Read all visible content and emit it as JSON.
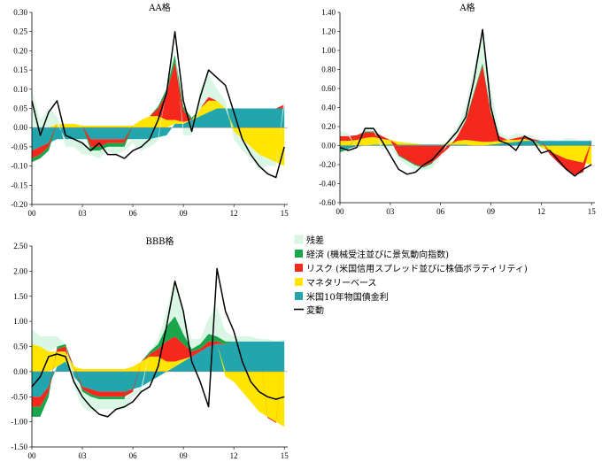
{
  "legend": [
    {
      "key": "residual",
      "label": "残差",
      "color": "#d9f7e4",
      "kind": "area"
    },
    {
      "key": "economy",
      "label": "経済 (機械受注並びに景気動向指数)",
      "color": "#1aa64a",
      "kind": "area"
    },
    {
      "key": "risk",
      "label": "リスク (米国信用スプレッド並びに株価ボラティリティ)",
      "color": "#f5281e",
      "kind": "area"
    },
    {
      "key": "monetary",
      "label": "マネタリーベース",
      "color": "#ffe500",
      "kind": "area"
    },
    {
      "key": "ust10y",
      "label": "米国10年物国債金利",
      "color": "#23a5ad",
      "kind": "area"
    },
    {
      "key": "change",
      "label": "変動",
      "color": "#000000",
      "kind": "line"
    }
  ],
  "chart_data": [
    {
      "type": "area",
      "title": "AA格",
      "xlabel": "",
      "ylabel": "",
      "xticks": [
        "00",
        "03",
        "06",
        "09",
        "12",
        "15"
      ],
      "xlim": [
        2000,
        2015.2
      ],
      "ylim": [
        -0.2,
        0.3
      ],
      "yticks": [
        "0.30",
        "0.25",
        "0.20",
        "0.15",
        "0.10",
        "0.05",
        "0.00",
        "-0.05",
        "-0.10",
        "-0.15",
        "-0.20"
      ],
      "x": [
        2000.0,
        2000.5,
        2001.0,
        2001.5,
        2002.0,
        2002.5,
        2003.0,
        2003.5,
        2004.0,
        2004.5,
        2005.0,
        2005.5,
        2006.0,
        2006.5,
        2007.0,
        2007.5,
        2008.0,
        2008.5,
        2009.0,
        2009.5,
        2010.0,
        2010.5,
        2011.0,
        2011.5,
        2012.0,
        2012.5,
        2013.0,
        2013.5,
        2014.0,
        2014.5,
        2015.0
      ],
      "series": [
        {
          "key": "ust10y",
          "values": [
            -0.06,
            -0.05,
            -0.04,
            -0.03,
            -0.03,
            -0.03,
            -0.03,
            -0.03,
            -0.03,
            -0.03,
            -0.03,
            -0.03,
            -0.03,
            -0.03,
            -0.03,
            -0.025,
            -0.02,
            0.01,
            0.01,
            0.02,
            0.03,
            0.04,
            0.05,
            0.05,
            0.05,
            0.05,
            0.05,
            0.05,
            0.05,
            0.05,
            0.05
          ]
        },
        {
          "key": "monetary",
          "values": [
            0.0,
            0.0,
            0.0,
            0.01,
            0.01,
            0.01,
            0.005,
            0.005,
            0.005,
            0.005,
            0.005,
            0.005,
            0.005,
            0.02,
            0.03,
            0.03,
            0.02,
            0.01,
            0.005,
            0.0,
            0.02,
            0.03,
            0.02,
            0.0,
            -0.01,
            -0.03,
            -0.05,
            -0.07,
            -0.08,
            -0.09,
            -0.1
          ]
        },
        {
          "key": "risk",
          "values": [
            -0.02,
            -0.02,
            -0.01,
            0.0,
            0.0,
            0.0,
            0.0,
            -0.02,
            -0.02,
            -0.01,
            -0.01,
            -0.01,
            0.0,
            0.0,
            0.0,
            0.02,
            0.07,
            0.15,
            0.03,
            0.0,
            0.0,
            0.01,
            0.0,
            0.0,
            0.0,
            0.0,
            0.0,
            0.0,
            0.0,
            0.0,
            0.01
          ]
        },
        {
          "key": "economy",
          "values": [
            -0.01,
            -0.01,
            -0.01,
            0.0,
            0.0,
            0.0,
            0.0,
            -0.01,
            -0.01,
            -0.01,
            -0.01,
            -0.01,
            0.0,
            0.0,
            0.0,
            0.005,
            0.01,
            0.02,
            0.01,
            0.005,
            0.0,
            0.0,
            0.0,
            0.0,
            0.0,
            0.0,
            0.0,
            0.0,
            0.0,
            0.0,
            0.0
          ]
        },
        {
          "key": "residual",
          "values": [
            0.1,
            0.02,
            0.05,
            0.02,
            -0.02,
            -0.02,
            -0.04,
            -0.01,
            -0.02,
            -0.01,
            -0.02,
            -0.01,
            -0.01,
            -0.03,
            -0.02,
            -0.01,
            0.0,
            0.02,
            -0.02,
            -0.02,
            0.05,
            0.06,
            0.03,
            0.02,
            -0.02,
            -0.03,
            -0.03,
            -0.04,
            -0.02,
            -0.01,
            0.02
          ]
        },
        {
          "key": "change",
          "values": [
            0.07,
            -0.02,
            0.04,
            0.07,
            -0.02,
            -0.03,
            -0.04,
            -0.06,
            -0.04,
            -0.07,
            -0.07,
            -0.08,
            -0.06,
            -0.05,
            -0.03,
            0.02,
            0.09,
            0.25,
            0.07,
            -0.01,
            0.08,
            0.15,
            0.13,
            0.11,
            0.04,
            -0.03,
            -0.07,
            -0.1,
            -0.12,
            -0.13,
            -0.05
          ]
        }
      ]
    },
    {
      "type": "area",
      "title": "A格",
      "xlabel": "",
      "ylabel": "",
      "xticks": [
        "00",
        "03",
        "06",
        "09",
        "12",
        "15"
      ],
      "xlim": [
        2000,
        2015.2
      ],
      "ylim": [
        -0.6,
        1.4
      ],
      "yticks": [
        "1.40",
        "1.20",
        "1.00",
        "0.80",
        "0.60",
        "0.40",
        "0.20",
        "0.00",
        "-0.20",
        "-0.40",
        "-0.60"
      ],
      "x": [
        2000.0,
        2000.5,
        2001.0,
        2001.5,
        2002.0,
        2002.5,
        2003.0,
        2003.5,
        2004.0,
        2004.5,
        2005.0,
        2005.5,
        2006.0,
        2006.5,
        2007.0,
        2007.5,
        2008.0,
        2008.5,
        2009.0,
        2009.5,
        2010.0,
        2010.5,
        2011.0,
        2011.5,
        2012.0,
        2012.5,
        2013.0,
        2013.5,
        2014.0,
        2014.5,
        2015.0
      ],
      "series": [
        {
          "key": "ust10y",
          "values": [
            -0.05,
            -0.03,
            -0.01,
            0.0,
            0.01,
            0.01,
            0.01,
            0.01,
            0.01,
            0.01,
            0.01,
            0.01,
            0.01,
            0.01,
            0.01,
            0.01,
            0.0,
            0.0,
            0.01,
            0.02,
            0.03,
            0.04,
            0.05,
            0.05,
            0.05,
            0.05,
            0.05,
            0.05,
            0.05,
            0.05,
            0.05
          ]
        },
        {
          "key": "monetary",
          "values": [
            0.05,
            0.05,
            0.06,
            0.08,
            0.08,
            0.06,
            0.05,
            0.03,
            0.02,
            0.01,
            0.0,
            0.0,
            0.0,
            0.02,
            0.04,
            0.05,
            0.05,
            0.04,
            0.03,
            0.03,
            0.03,
            0.02,
            0.02,
            0.0,
            -0.02,
            -0.06,
            -0.1,
            -0.14,
            -0.16,
            -0.18,
            -0.2
          ]
        },
        {
          "key": "risk",
          "values": [
            0.05,
            0.05,
            0.05,
            0.06,
            0.05,
            0.03,
            0.0,
            -0.1,
            -0.15,
            -0.2,
            -0.22,
            -0.18,
            -0.1,
            -0.02,
            0.05,
            0.2,
            0.5,
            0.8,
            0.3,
            0.05,
            0.0,
            0.02,
            0.03,
            0.02,
            0.0,
            -0.03,
            -0.08,
            -0.12,
            -0.15,
            -0.1,
            0.0
          ]
        },
        {
          "key": "economy",
          "values": [
            -0.02,
            -0.01,
            0.0,
            0.01,
            0.01,
            0.0,
            0.0,
            -0.01,
            -0.01,
            -0.01,
            -0.01,
            -0.01,
            0.0,
            0.0,
            0.0,
            0.01,
            0.02,
            0.03,
            0.01,
            0.0,
            0.0,
            0.0,
            0.0,
            0.0,
            0.0,
            0.0,
            0.0,
            0.0,
            0.0,
            0.0,
            0.0
          ]
        },
        {
          "key": "residual",
          "values": [
            0.05,
            0.03,
            -0.02,
            0.05,
            0.04,
            -0.05,
            -0.02,
            -0.03,
            -0.05,
            -0.05,
            -0.03,
            -0.05,
            -0.02,
            0.05,
            0.1,
            0.15,
            0.25,
            0.35,
            0.25,
            0.05,
            0.02,
            0.05,
            0.02,
            0.03,
            0.0,
            0.02,
            0.0,
            0.03,
            0.02,
            0.0,
            0.02
          ]
        },
        {
          "key": "change",
          "values": [
            -0.02,
            -0.05,
            -0.02,
            0.18,
            0.18,
            0.05,
            -0.1,
            -0.25,
            -0.3,
            -0.28,
            -0.2,
            -0.15,
            -0.05,
            0.05,
            0.15,
            0.3,
            0.7,
            1.22,
            0.4,
            0.05,
            0.02,
            -0.05,
            0.1,
            0.05,
            -0.08,
            -0.05,
            -0.15,
            -0.25,
            -0.32,
            -0.25,
            -0.2
          ]
        }
      ]
    },
    {
      "type": "area",
      "title": "BBB格",
      "xlabel": "",
      "ylabel": "",
      "xticks": [
        "00",
        "03",
        "06",
        "09",
        "12",
        "15"
      ],
      "xlim": [
        2000,
        2015.2
      ],
      "ylim": [
        -1.5,
        2.5
      ],
      "yticks": [
        "2.50",
        "2.00",
        "1.50",
        "1.00",
        "0.50",
        "0.00",
        "-0.50",
        "-1.00",
        "-1.50"
      ],
      "x": [
        2000.0,
        2000.5,
        2001.0,
        2001.5,
        2002.0,
        2002.5,
        2003.0,
        2003.5,
        2004.0,
        2004.5,
        2005.0,
        2005.5,
        2006.0,
        2006.5,
        2007.0,
        2007.5,
        2008.0,
        2008.5,
        2009.0,
        2009.5,
        2010.0,
        2010.5,
        2011.0,
        2011.5,
        2012.0,
        2012.5,
        2013.0,
        2013.5,
        2014.0,
        2014.5,
        2015.0
      ],
      "series": [
        {
          "key": "ust10y",
          "values": [
            -0.5,
            -0.5,
            -0.3,
            0.1,
            0.2,
            -0.1,
            -0.3,
            -0.35,
            -0.4,
            -0.4,
            -0.4,
            -0.4,
            -0.35,
            -0.3,
            -0.2,
            -0.1,
            0.0,
            0.1,
            0.2,
            0.3,
            0.4,
            0.5,
            0.55,
            0.55,
            0.6,
            0.6,
            0.6,
            0.6,
            0.6,
            0.6,
            0.6
          ]
        },
        {
          "key": "monetary",
          "values": [
            0.55,
            0.5,
            0.4,
            0.3,
            0.2,
            0.1,
            0.05,
            0.05,
            0.05,
            0.05,
            0.05,
            0.05,
            0.1,
            0.2,
            0.3,
            0.3,
            0.2,
            0.1,
            0.05,
            0.0,
            0.0,
            0.0,
            0.0,
            -0.1,
            -0.2,
            -0.4,
            -0.6,
            -0.8,
            -0.9,
            -1.0,
            -1.1
          ]
        },
        {
          "key": "risk",
          "values": [
            -0.2,
            -0.2,
            -0.1,
            0.05,
            0.1,
            0.0,
            -0.05,
            -0.1,
            -0.1,
            -0.1,
            -0.1,
            -0.1,
            -0.05,
            0.0,
            0.05,
            0.15,
            0.4,
            0.5,
            0.3,
            0.1,
            0.05,
            0.1,
            0.05,
            0.0,
            0.0,
            0.0,
            0.0,
            0.0,
            -0.02,
            -0.02,
            0.0
          ]
        },
        {
          "key": "economy",
          "values": [
            -0.2,
            -0.2,
            -0.1,
            0.05,
            0.05,
            0.0,
            -0.05,
            -0.05,
            -0.05,
            -0.05,
            -0.05,
            -0.05,
            0.0,
            0.0,
            0.05,
            0.1,
            0.3,
            0.4,
            0.2,
            0.05,
            0.1,
            0.15,
            0.1,
            0.05,
            0.0,
            0.0,
            0.0,
            0.0,
            0.0,
            0.0,
            0.0
          ]
        },
        {
          "key": "residual",
          "values": [
            0.3,
            0.2,
            0.3,
            0.2,
            0.0,
            -0.2,
            -0.3,
            -0.3,
            -0.2,
            -0.2,
            -0.2,
            -0.2,
            -0.1,
            -0.1,
            0.0,
            0.1,
            0.3,
            0.8,
            0.4,
            0.2,
            0.1,
            0.3,
            0.6,
            0.2,
            0.1,
            0.1,
            0.1,
            0.05,
            0.05,
            0.0,
            0.05
          ]
        },
        {
          "key": "change",
          "values": [
            -0.3,
            -0.1,
            0.3,
            0.35,
            0.3,
            -0.2,
            -0.5,
            -0.7,
            -0.85,
            -0.9,
            -0.75,
            -0.7,
            -0.6,
            -0.4,
            -0.3,
            0.1,
            0.9,
            1.8,
            1.2,
            0.2,
            -0.2,
            -0.7,
            2.05,
            1.2,
            0.8,
            0.2,
            -0.2,
            -0.4,
            -0.5,
            -0.55,
            -0.5
          ]
        }
      ]
    }
  ]
}
